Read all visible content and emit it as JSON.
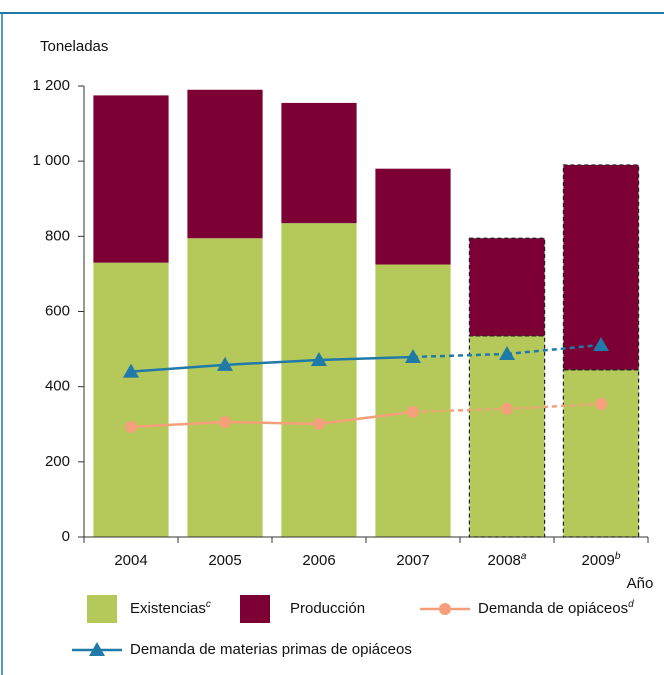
{
  "chart_data": {
    "type": "stacked_bar_line",
    "y_label": "Toneladas",
    "x_label": "Año",
    "categories": [
      "2004",
      "2005",
      "2006",
      "2007",
      "2008",
      "2009"
    ],
    "category_notes": [
      null,
      null,
      null,
      null,
      "a",
      "b"
    ],
    "dashed": [
      false,
      false,
      false,
      false,
      true,
      true
    ],
    "ylim": [
      0,
      1200
    ],
    "yticks": [
      0,
      200,
      400,
      600,
      800,
      {
        "value": 1000,
        "label": "1 000"
      },
      {
        "value": 1200,
        "label": "1 200"
      }
    ],
    "series": [
      {
        "name": "Existencias",
        "note": "c",
        "kind": "bar",
        "color": "#b5c95a",
        "values": [
          730,
          795,
          835,
          725,
          535,
          445
        ]
      },
      {
        "name": "Producción",
        "kind": "bar",
        "color": "#7d0034",
        "values": [
          445,
          395,
          320,
          255,
          260,
          545
        ]
      },
      {
        "name": "Demanda de opiáceos",
        "note": "d",
        "kind": "line",
        "marker": "circle",
        "color": "#f5a07a",
        "values": [
          293,
          306,
          301,
          333,
          341,
          354
        ]
      },
      {
        "name": "Demanda de materias primas de opiáceos",
        "kind": "line",
        "marker": "triangle",
        "color": "#1f7aa8",
        "values": [
          440,
          458,
          471,
          479,
          487,
          511
        ]
      }
    ]
  }
}
